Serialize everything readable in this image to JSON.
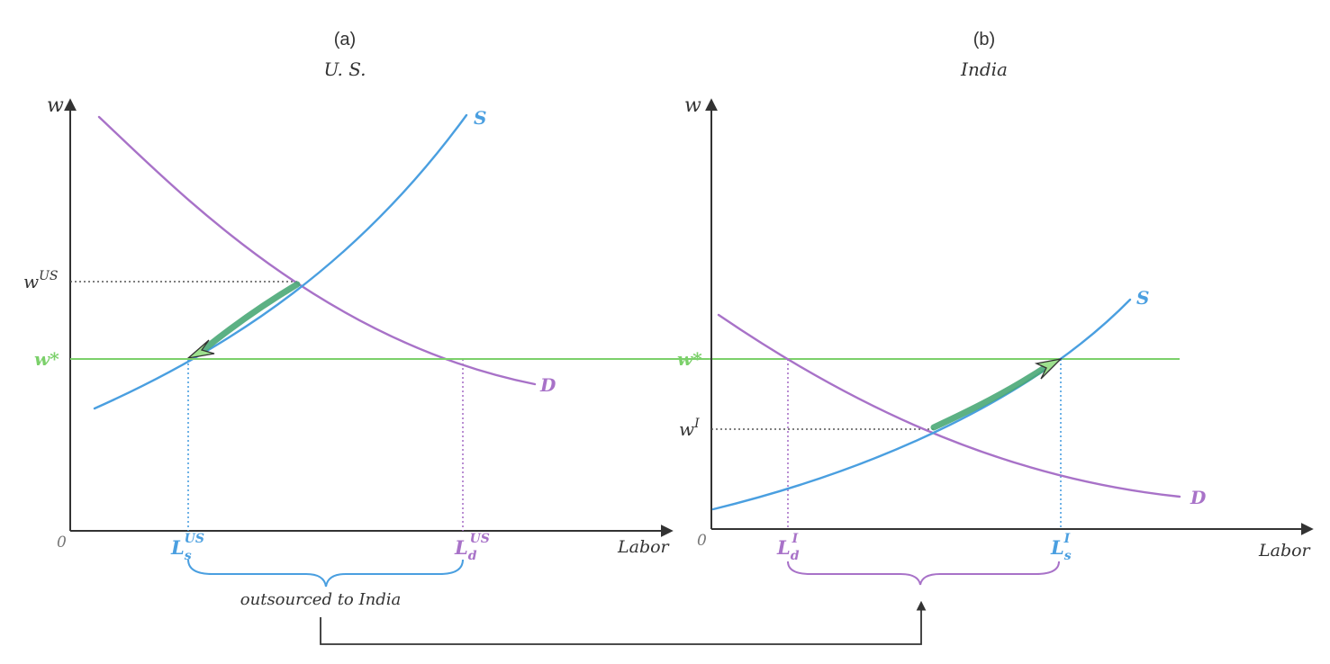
{
  "colors": {
    "supply": "#4a9fe0",
    "demand": "#a872c8",
    "world_wage": "#7bd06a",
    "shift_arrow": "#4aa877",
    "axis": "#333333",
    "guide_gray": "#555555",
    "text_gray": "#333333"
  },
  "panels": [
    {
      "tag": "(a)",
      "title": "U. S.",
      "y_label": "w",
      "x_label": "Labor",
      "origin_label": "0",
      "supply_label": "S",
      "demand_label": "D",
      "world_wage_label": "w*",
      "local_wage_label": "w",
      "local_wage_sup": "US",
      "ls_label": "L",
      "ls_sub": "s",
      "ls_sup": "US",
      "ld_label": "L",
      "ld_sub": "d",
      "ld_sup": "US"
    },
    {
      "tag": "(b)",
      "title": "India",
      "y_label": "w",
      "x_label": "Labor",
      "origin_label": "0",
      "supply_label": "S",
      "demand_label": "D",
      "world_wage_label": "w*",
      "local_wage_label": "w",
      "local_wage_sup": "I",
      "ld_label": "L",
      "ld_sub": "d",
      "ld_sup": "I",
      "ls_label": "L",
      "ls_sub": "s",
      "ls_sup": "I"
    }
  ],
  "bracket_note": "outsourced to India"
}
